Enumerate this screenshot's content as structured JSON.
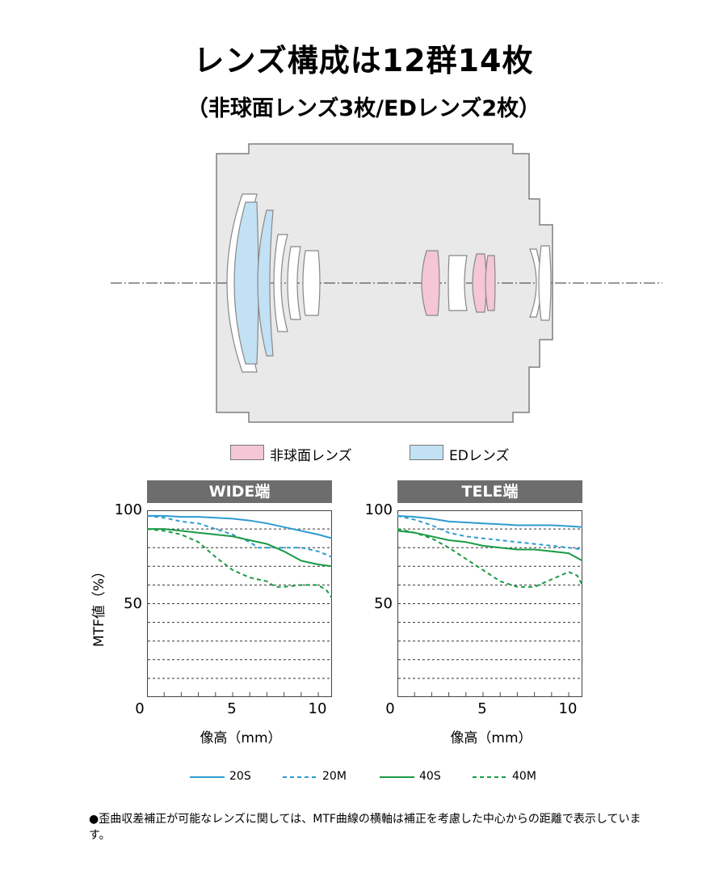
{
  "header": {
    "title": "レンズ構成は12群14枚",
    "subtitle": "（非球面レンズ3枚/EDレンズ2枚）"
  },
  "lens_legend": [
    {
      "label": "非球面レンズ",
      "color": "#f4c6d6"
    },
    {
      "label": "EDレンズ",
      "color": "#c3e1f4"
    }
  ],
  "colors": {
    "body_fill": "#e9e9e9",
    "body_stroke": "#7f7f7f",
    "s20": "#2e9bd0",
    "s40": "#199a45"
  },
  "chart_data": [
    {
      "type": "line",
      "title": "WIDE端",
      "xlabel": "像高（mm）",
      "ylabel": "MTF値（%）",
      "xlim": [
        0,
        10.8
      ],
      "ylim": [
        0,
        100
      ],
      "xticks": [
        "0",
        "5",
        "10"
      ],
      "yticks": [
        "50",
        "100"
      ],
      "grid_y": [
        10,
        20,
        30,
        40,
        50,
        60,
        70,
        80,
        90
      ],
      "series": [
        {
          "name": "20S",
          "x": [
            0,
            1,
            2,
            3,
            4,
            5,
            6,
            7,
            8,
            9,
            10,
            10.8
          ],
          "y": [
            97,
            97,
            96.5,
            96.5,
            96,
            95.5,
            94.5,
            93,
            91,
            89,
            87,
            85
          ]
        },
        {
          "name": "20M",
          "x": [
            0,
            1,
            2,
            3,
            4,
            5,
            6,
            6.5,
            7,
            8,
            9,
            10,
            10.8
          ],
          "y": [
            97,
            96,
            94,
            93,
            90,
            87,
            83,
            80,
            80,
            80,
            80,
            78,
            75
          ]
        },
        {
          "name": "40S",
          "x": [
            0,
            1,
            2,
            3,
            4,
            5,
            6,
            7,
            8,
            9,
            10,
            10.8
          ],
          "y": [
            90,
            90,
            89,
            88,
            87,
            86,
            84,
            82,
            78,
            73,
            71,
            70
          ]
        },
        {
          "name": "40M",
          "x": [
            0,
            1,
            2,
            2.5,
            3,
            4,
            5,
            6,
            7,
            7.5,
            8,
            9,
            10,
            10.5,
            10.8
          ],
          "y": [
            90,
            89,
            87,
            85,
            83,
            75,
            68,
            64,
            62,
            59,
            59,
            60,
            60,
            57,
            53
          ]
        }
      ]
    },
    {
      "type": "line",
      "title": "TELE端",
      "xlabel": "像高（mm）",
      "ylabel": "",
      "xlim": [
        0,
        10.8
      ],
      "ylim": [
        0,
        100
      ],
      "xticks": [
        "0",
        "5",
        "10"
      ],
      "yticks": [
        "50",
        "100"
      ],
      "grid_y": [
        10,
        20,
        30,
        40,
        50,
        60,
        70,
        80,
        90
      ],
      "series": [
        {
          "name": "20S",
          "x": [
            0,
            1,
            2,
            3,
            4,
            5,
            6,
            7,
            8,
            9,
            10,
            10.8
          ],
          "y": [
            97,
            96.5,
            95.5,
            94,
            93.5,
            93,
            92.5,
            92,
            92,
            92,
            91.5,
            91
          ]
        },
        {
          "name": "20M",
          "x": [
            0,
            1,
            2,
            3,
            4,
            5,
            6,
            7,
            8,
            9,
            10,
            10.8
          ],
          "y": [
            97,
            95,
            92,
            88,
            86,
            85,
            84,
            83,
            82,
            81,
            80,
            79
          ]
        },
        {
          "name": "40S",
          "x": [
            0,
            1,
            2,
            3,
            4,
            5,
            6,
            7,
            8,
            9,
            10,
            10.8
          ],
          "y": [
            89,
            88,
            86,
            84,
            83,
            81,
            80,
            79,
            79,
            78,
            77,
            73
          ]
        },
        {
          "name": "40M",
          "x": [
            0,
            1,
            2,
            3,
            4,
            5,
            6,
            7,
            8,
            9,
            10,
            10.5,
            10.8
          ],
          "y": [
            90,
            88,
            85,
            80,
            74,
            68,
            62,
            59,
            59,
            63,
            67,
            65,
            60
          ]
        }
      ]
    }
  ],
  "mtf_legend": [
    {
      "label": "20S",
      "dashed": false,
      "color": "#2e9bd0"
    },
    {
      "label": "20M",
      "dashed": true,
      "color": "#2e9bd0"
    },
    {
      "label": "40S",
      "dashed": false,
      "color": "#199a45"
    },
    {
      "label": "40M",
      "dashed": true,
      "color": "#199a45"
    }
  ],
  "footnote": "●歪曲収差補正が可能なレンズに関しては、MTF曲線の横軸は補正を考慮した中心からの距離で表示しています。"
}
